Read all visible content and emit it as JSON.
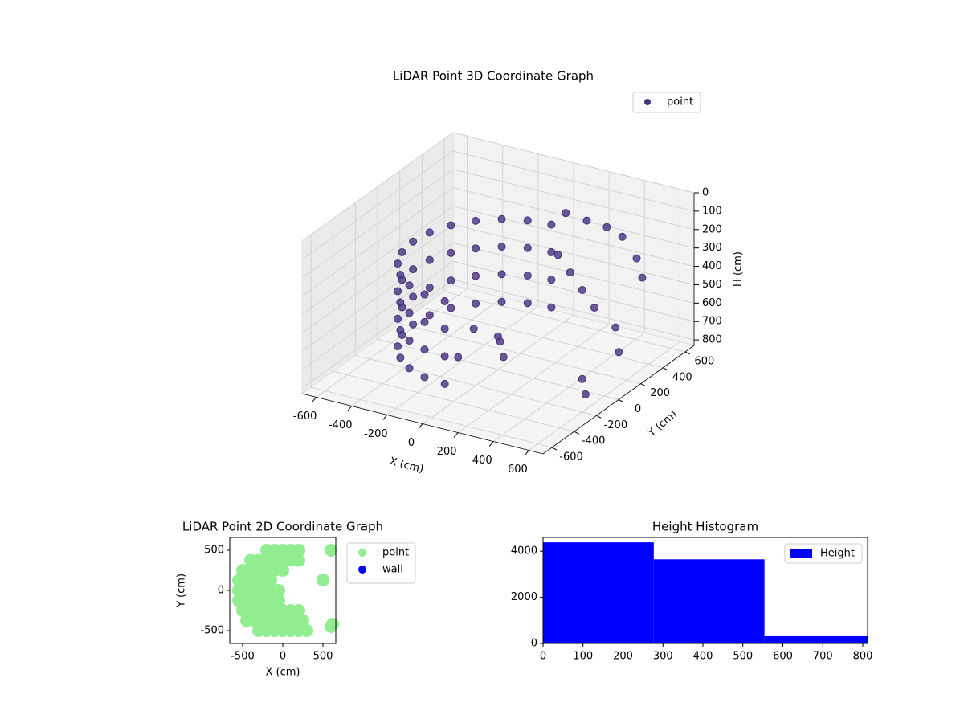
{
  "chart_data": [
    {
      "type": "scatter3d",
      "title": "LiDAR Point 3D Coordinate Graph",
      "xlabel": "X (cm)",
      "ylabel": "Y (cm)",
      "zlabel": "H (cm)",
      "xlim": [
        -680,
        680
      ],
      "ylim": [
        -680,
        680
      ],
      "zlim": [
        0,
        830
      ],
      "z_inverted": true,
      "xticks": [
        -600,
        -400,
        -200,
        0,
        200,
        400,
        600
      ],
      "yticks": [
        -600,
        -400,
        -200,
        0,
        200,
        400,
        600
      ],
      "zticks": [
        0,
        100,
        200,
        300,
        400,
        500,
        600,
        700,
        800
      ],
      "grid": true,
      "legend": "upper right",
      "series": [
        {
          "name": "point",
          "color": "#46327e",
          "x": [
            0,
            -124,
            -240,
            -339,
            -416,
            -464,
            -480,
            -464,
            -416,
            -339,
            -240,
            -124,
            0,
            0,
            -124,
            -240,
            -339,
            -416,
            -464,
            -480,
            -464,
            -416,
            -339,
            -240,
            -124,
            0,
            0,
            -124,
            -240,
            -339,
            -416,
            -464,
            -480,
            -464,
            -416,
            -339,
            -240,
            -124,
            0,
            0,
            -124,
            -240,
            -339,
            -416,
            -464,
            -480,
            -464,
            -416,
            -339,
            -240,
            -124,
            0,
            100,
            200,
            300,
            400,
            500,
            550,
            150,
            250,
            350,
            450,
            600,
            650,
            200,
            250,
            600,
            650,
            0,
            -200,
            -100
          ],
          "y": [
            480,
            464,
            416,
            339,
            240,
            124,
            0,
            -124,
            -240,
            -339,
            -416,
            -464,
            -480,
            480,
            464,
            416,
            339,
            240,
            124,
            0,
            -124,
            -240,
            -339,
            -416,
            -464,
            -480,
            480,
            464,
            416,
            339,
            240,
            124,
            0,
            -124,
            -240,
            -339,
            -416,
            -464,
            -480,
            480,
            464,
            416,
            339,
            240,
            124,
            0,
            -124,
            -240,
            -339,
            -416,
            -464,
            -480,
            450,
            480,
            500,
            480,
            450,
            420,
            300,
            250,
            200,
            150,
            100,
            50,
            -300,
            -350,
            -200,
            -250,
            0,
            100,
            -200
          ],
          "z": [
            250,
            250,
            250,
            250,
            250,
            250,
            250,
            250,
            250,
            250,
            250,
            250,
            250,
            400,
            400,
            400,
            400,
            400,
            400,
            400,
            400,
            400,
            400,
            400,
            400,
            400,
            550,
            550,
            550,
            550,
            550,
            550,
            550,
            550,
            550,
            550,
            550,
            550,
            550,
            700,
            700,
            700,
            700,
            700,
            700,
            700,
            700,
            700,
            700,
            700,
            700,
            700,
            150,
            180,
            200,
            220,
            300,
            380,
            300,
            350,
            400,
            450,
            500,
            600,
            500,
            550,
            650,
            700,
            650,
            700,
            700
          ]
        }
      ]
    },
    {
      "type": "scatter",
      "title": "LiDAR Point 2D Coordinate Graph",
      "xlabel": "X (cm)",
      "ylabel": "Y (cm)",
      "xlim": [
        -660,
        660
      ],
      "ylim": [
        -660,
        660
      ],
      "xticks": [
        -500,
        0,
        500
      ],
      "yticks": [
        -500,
        0,
        500
      ],
      "legend": "outside right",
      "series": [
        {
          "name": "point",
          "color": "#90ee90",
          "x": [
            -200,
            -100,
            0,
            100,
            200,
            -400,
            -300,
            -200,
            -100,
            0,
            100,
            200,
            -500,
            -400,
            -300,
            -200,
            -100,
            0,
            -550,
            -450,
            -350,
            -250,
            -150,
            -550,
            -450,
            -350,
            -250,
            -150,
            -50,
            -550,
            -450,
            -350,
            -250,
            -150,
            -50,
            -500,
            -400,
            -300,
            -200,
            -100,
            0,
            100,
            200,
            -450,
            -350,
            -250,
            -150,
            -50,
            50,
            150,
            250,
            -300,
            -200,
            -100,
            0,
            100,
            200,
            300,
            600,
            500,
            600,
            620
          ],
          "y": [
            500,
            500,
            500,
            500,
            500,
            375,
            375,
            375,
            375,
            375,
            375,
            375,
            250,
            250,
            250,
            250,
            250,
            250,
            125,
            125,
            125,
            125,
            125,
            0,
            0,
            0,
            0,
            0,
            0,
            -125,
            -125,
            -125,
            -125,
            -125,
            -125,
            -250,
            -250,
            -250,
            -250,
            -250,
            -250,
            -250,
            -250,
            -375,
            -375,
            -375,
            -375,
            -375,
            -375,
            -375,
            -375,
            -500,
            -500,
            -500,
            -500,
            -500,
            -500,
            -500,
            500,
            130,
            -450,
            -420
          ]
        },
        {
          "name": "wall",
          "color": "#0000ff",
          "x": [],
          "y": []
        }
      ]
    },
    {
      "type": "histogram",
      "title": "Height Histogram",
      "bins": [
        0,
        277,
        554,
        831
      ],
      "xlim": [
        0,
        812
      ],
      "ylim": [
        0,
        4600
      ],
      "xticks": [
        0,
        100,
        200,
        300,
        400,
        500,
        600,
        700,
        800
      ],
      "yticks": [
        0,
        2000,
        4000
      ],
      "legend": "upper right",
      "series": [
        {
          "name": "Height",
          "color": "#0000ff",
          "values": [
            4386,
            3649,
            316
          ]
        }
      ]
    }
  ]
}
